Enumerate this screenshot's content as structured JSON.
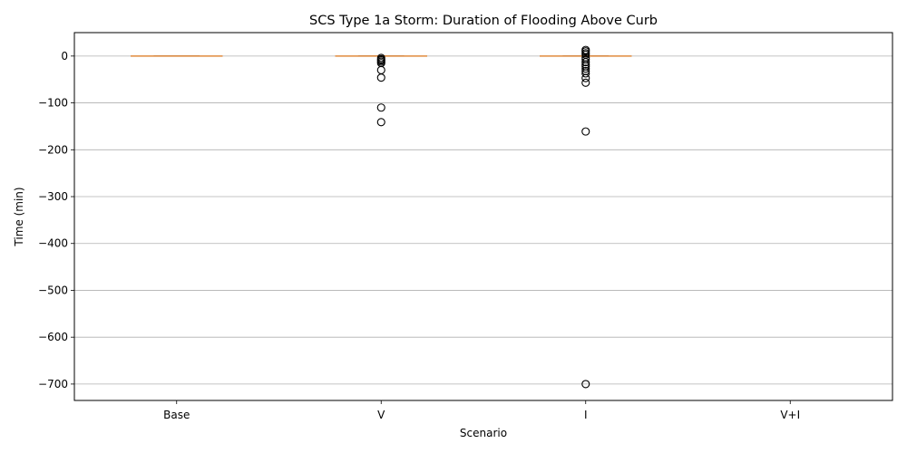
{
  "chart_data": {
    "type": "box",
    "title": "SCS Type 1a Storm: Duration of Flooding Above Curb",
    "xlabel": "Scenario",
    "ylabel": "Time (min)",
    "categories": [
      "Base",
      "V",
      "I",
      "V+I"
    ],
    "ylim": [
      -735,
      50
    ],
    "yticks": [
      0,
      -100,
      -200,
      -300,
      -400,
      -500,
      -600,
      -700
    ],
    "ytick_labels": [
      "0",
      "−100",
      "−200",
      "−300",
      "−400",
      "−500",
      "−600",
      "−700"
    ],
    "grid": "y",
    "boxes": [
      {
        "category": "Base",
        "q1": 0,
        "median": 0,
        "q3": 0,
        "whislo": 0,
        "whishi": 0,
        "fliers": []
      },
      {
        "category": "V",
        "q1": 0,
        "median": 0,
        "q3": 0,
        "whislo": 0,
        "whishi": 0,
        "fliers": [
          -4,
          -7,
          -9,
          -12,
          -15,
          -30,
          -46,
          -110,
          -141
        ]
      },
      {
        "category": "I",
        "q1": 0,
        "median": 0,
        "q3": 0,
        "whislo": 0,
        "whishi": 0,
        "fliers": [
          13,
          10,
          6,
          3,
          -3,
          -7,
          -13,
          -18,
          -22,
          -27,
          -32,
          -37,
          -47,
          -57,
          -161,
          -700
        ]
      },
      {
        "category": "V+I",
        "q1": null,
        "median": null,
        "q3": null,
        "whislo": null,
        "whishi": null,
        "fliers": []
      }
    ],
    "colors": {
      "median": "#e08a3c",
      "box": "#000000",
      "grid": "#b0b0b0",
      "flier_edge": "#000000"
    }
  }
}
